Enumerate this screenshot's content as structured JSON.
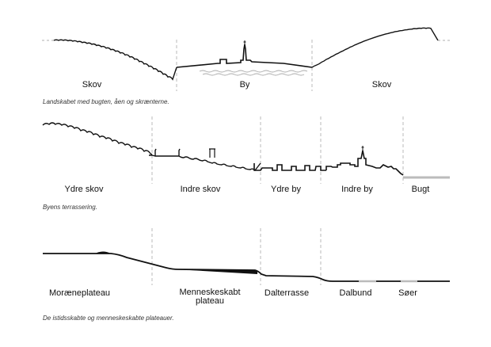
{
  "panels": [
    {
      "labels": [
        "Skov",
        "By",
        "Skov"
      ],
      "caption": "Landskabet med bugten, åen og skrænterne."
    },
    {
      "labels": [
        "Ydre skov",
        "Indre skov",
        "Ydre by",
        "Indre by",
        "Bugt"
      ],
      "caption": "Byens terrassering."
    },
    {
      "labels": [
        "Morænepl­ateau",
        "Menneskeskabt plateau",
        "Dalterrasse",
        "Dalbund",
        "Søer"
      ],
      "caption": "De istidsskabte og menneskeskabte plateauer."
    }
  ]
}
